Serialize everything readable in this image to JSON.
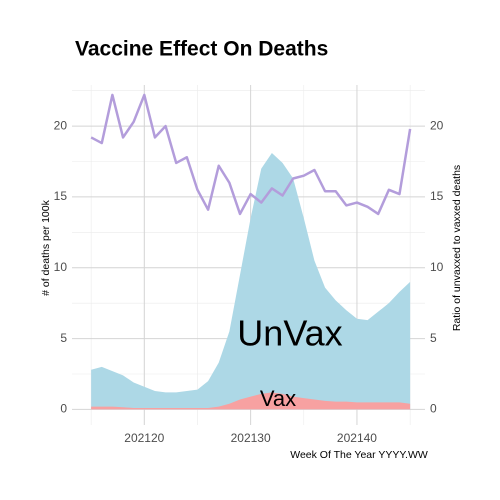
{
  "chart_data": {
    "type": "area",
    "title": "Vaccine Effect On Deaths",
    "xlabel": "Week Of The Year YYYY.WW",
    "ylabel": "# of deaths per 100k",
    "y2label": "Ratio of unvaxxed to vaxxed deaths",
    "annotations": [
      "UnVax",
      "Vax"
    ],
    "x": [
      202115,
      202116,
      202117,
      202118,
      202119,
      202120,
      202121,
      202122,
      202123,
      202124,
      202125,
      202126,
      202127,
      202128,
      202129,
      202130,
      202131,
      202132,
      202133,
      202134,
      202135,
      202136,
      202137,
      202138,
      202139,
      202140,
      202141,
      202142,
      202143,
      202144,
      202145
    ],
    "xlim": [
      202113.2,
      202146.4
    ],
    "xticks": [
      202120,
      202130,
      202140
    ],
    "ylim": [
      -1.1,
      22.9
    ],
    "yticks": [
      0,
      5,
      10,
      15,
      20
    ],
    "y2lim": [
      -1.1,
      22.9
    ],
    "y2ticks": [
      0,
      5,
      10,
      15,
      20
    ],
    "grid": true,
    "series": [
      {
        "name": "UnVax",
        "color": "#add8e6",
        "values": [
          2.8,
          3.0,
          2.7,
          2.4,
          1.9,
          1.6,
          1.3,
          1.2,
          1.2,
          1.3,
          1.4,
          2.0,
          3.3,
          5.5,
          9.5,
          13.5,
          17.0,
          18.1,
          17.4,
          16.3,
          13.5,
          10.5,
          8.6,
          7.7,
          7.0,
          6.4,
          6.3,
          6.9,
          7.5,
          8.3,
          9.0
        ]
      },
      {
        "name": "Vax",
        "color": "#f7a1a1",
        "values": [
          0.2,
          0.2,
          0.2,
          0.15,
          0.1,
          0.1,
          0.1,
          0.1,
          0.1,
          0.1,
          0.1,
          0.1,
          0.2,
          0.4,
          0.7,
          0.9,
          1.1,
          1.2,
          1.1,
          0.9,
          0.8,
          0.7,
          0.6,
          0.55,
          0.55,
          0.5,
          0.5,
          0.5,
          0.5,
          0.5,
          0.4
        ]
      },
      {
        "name": "Ratio",
        "color": "#b39ddb",
        "axis": "y2",
        "values": [
          19.2,
          18.8,
          22.2,
          19.2,
          20.3,
          22.2,
          19.2,
          20.0,
          17.4,
          17.8,
          15.5,
          14.1,
          17.2,
          16.0,
          13.8,
          15.2,
          14.6,
          15.6,
          15.1,
          16.3,
          16.5,
          16.9,
          15.4,
          15.4,
          14.4,
          14.6,
          14.3,
          13.8,
          15.5,
          15.2,
          19.8
        ]
      }
    ]
  }
}
